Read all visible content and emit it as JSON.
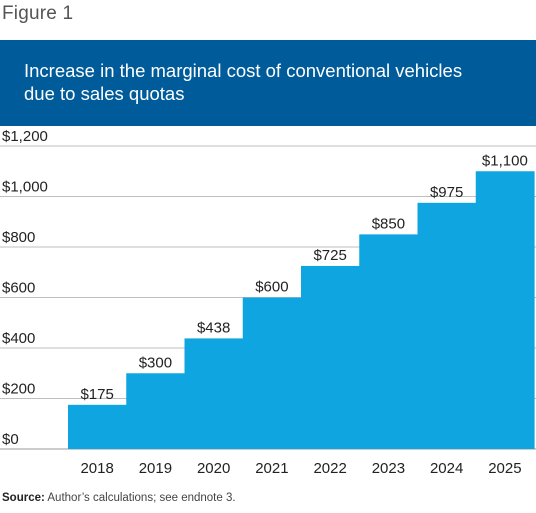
{
  "figure_label": "Figure 1",
  "colors": {
    "banner": "#005b9a",
    "bars": "#0ea5e0",
    "gridline": "#bfbfbf",
    "axis_text": "#222222"
  },
  "chart_data": {
    "type": "bar",
    "title": "Increase in the marginal cost of conventional vehicles due to sales quotas",
    "xlabel": "",
    "ylabel": "",
    "categories": [
      "2018",
      "2019",
      "2020",
      "2021",
      "2022",
      "2023",
      "2024",
      "2025"
    ],
    "values": [
      175,
      300,
      438,
      600,
      725,
      850,
      975,
      1100
    ],
    "data_labels": [
      "$175",
      "$300",
      "$438",
      "$600",
      "$725",
      "$850",
      "$975",
      "$1,100"
    ],
    "ylim": [
      0,
      1200
    ],
    "yticks": [
      0,
      200,
      400,
      600,
      800,
      1000,
      1200
    ],
    "ytick_labels": [
      "$0",
      "$200",
      "$400",
      "$600",
      "$800",
      "$1,000",
      "$1,200"
    ],
    "grid": true,
    "legend": "none",
    "style": "stepped bars without gaps"
  },
  "source": {
    "label": "Source:",
    "text": " Author’s calculations; see endnote 3."
  }
}
